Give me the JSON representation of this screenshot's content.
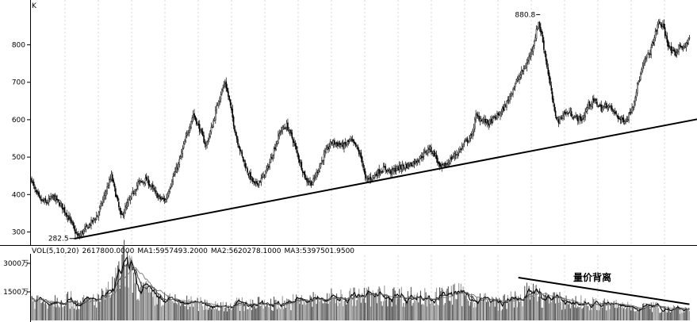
{
  "chart_data": {
    "type": "candlestick",
    "price_panel": {
      "corner_label": "K",
      "ylim": [
        265,
        905
      ],
      "yticks": [
        {
          "value": 300,
          "label": "300"
        },
        {
          "value": 400,
          "label": "400"
        },
        {
          "value": 500,
          "label": "500"
        },
        {
          "value": 600,
          "label": "600"
        },
        {
          "value": 700,
          "label": "700"
        },
        {
          "value": 800,
          "label": "800"
        }
      ],
      "grid": "vertical dashed",
      "low_label": "282.5",
      "high_label": "880.8",
      "low_value": 282.5,
      "high_value": 880.8,
      "close_path": [
        [
          0,
          440
        ],
        [
          3,
          410
        ],
        [
          8,
          385
        ],
        [
          14,
          378
        ],
        [
          20,
          395
        ],
        [
          28,
          370
        ],
        [
          36,
          333
        ],
        [
          40,
          305
        ],
        [
          44,
          286
        ],
        [
          48,
          300
        ],
        [
          54,
          318
        ],
        [
          62,
          345
        ],
        [
          70,
          410
        ],
        [
          75,
          450
        ],
        [
          80,
          390
        ],
        [
          84,
          340
        ],
        [
          92,
          385
        ],
        [
          100,
          430
        ],
        [
          108,
          440
        ],
        [
          115,
          410
        ],
        [
          120,
          390
        ],
        [
          126,
          385
        ],
        [
          132,
          440
        ],
        [
          138,
          480
        ],
        [
          146,
          560
        ],
        [
          152,
          615
        ],
        [
          158,
          575
        ],
        [
          164,
          530
        ],
        [
          170,
          585
        ],
        [
          176,
          655
        ],
        [
          182,
          700
        ],
        [
          186,
          650
        ],
        [
          192,
          560
        ],
        [
          198,
          500
        ],
        [
          204,
          455
        ],
        [
          210,
          425
        ],
        [
          216,
          440
        ],
        [
          222,
          470
        ],
        [
          228,
          520
        ],
        [
          234,
          570
        ],
        [
          240,
          585
        ],
        [
          246,
          545
        ],
        [
          252,
          490
        ],
        [
          258,
          440
        ],
        [
          264,
          430
        ],
        [
          270,
          470
        ],
        [
          276,
          510
        ],
        [
          282,
          540
        ],
        [
          288,
          535
        ],
        [
          294,
          530
        ],
        [
          300,
          545
        ],
        [
          306,
          525
        ],
        [
          311,
          490
        ],
        [
          314,
          440
        ],
        [
          320,
          445
        ],
        [
          326,
          460
        ],
        [
          332,
          470
        ],
        [
          338,
          460
        ],
        [
          344,
          470
        ],
        [
          350,
          475
        ],
        [
          356,
          480
        ],
        [
          362,
          490
        ],
        [
          368,
          505
        ],
        [
          374,
          525
        ],
        [
          380,
          505
        ],
        [
          384,
          470
        ],
        [
          390,
          480
        ],
        [
          396,
          500
        ],
        [
          402,
          515
        ],
        [
          408,
          540
        ],
        [
          414,
          555
        ],
        [
          418,
          610
        ],
        [
          424,
          600
        ],
        [
          430,
          590
        ],
        [
          436,
          605
        ],
        [
          442,
          620
        ],
        [
          448,
          650
        ],
        [
          454,
          690
        ],
        [
          460,
          720
        ],
        [
          466,
          750
        ],
        [
          472,
          800
        ],
        [
          477,
          860
        ],
        [
          480,
          825
        ],
        [
          484,
          760
        ],
        [
          488,
          690
        ],
        [
          492,
          620
        ],
        [
          496,
          595
        ],
        [
          500,
          615
        ],
        [
          506,
          620
        ],
        [
          512,
          605
        ],
        [
          518,
          600
        ],
        [
          524,
          640
        ],
        [
          530,
          650
        ],
        [
          536,
          630
        ],
        [
          542,
          640
        ],
        [
          548,
          620
        ],
        [
          554,
          600
        ],
        [
          560,
          600
        ],
        [
          566,
          640
        ],
        [
          570,
          690
        ],
        [
          574,
          730
        ],
        [
          578,
          765
        ],
        [
          582,
          780
        ],
        [
          586,
          820
        ],
        [
          590,
          860
        ],
        [
          594,
          850
        ],
        [
          598,
          810
        ],
        [
          602,
          780
        ],
        [
          606,
          775
        ],
        [
          610,
          800
        ],
        [
          614,
          790
        ],
        [
          619,
          820
        ]
      ],
      "trendline": [
        [
          40,
          282
        ],
        [
          633,
          605
        ]
      ]
    },
    "volume_panel": {
      "header": "VOL(5,10,20)",
      "series": [
        {
          "name": "VOL",
          "value": "2617800.0000"
        },
        {
          "name": "MA1",
          "value": "5957493.2000"
        },
        {
          "name": "MA2",
          "value": "5620278.1000"
        },
        {
          "name": "MA3",
          "value": "5397501.9500"
        }
      ],
      "ylim": [
        0,
        3500
      ],
      "yticks": [
        {
          "value": 1500,
          "label": "1500万"
        },
        {
          "value": 3000,
          "label": "3000万"
        }
      ],
      "volume_path": [
        [
          0,
          1100
        ],
        [
          15,
          1000
        ],
        [
          30,
          1200
        ],
        [
          45,
          900
        ],
        [
          70,
          1250
        ],
        [
          82,
          2300
        ],
        [
          88,
          3100
        ],
        [
          94,
          2400
        ],
        [
          100,
          1700
        ],
        [
          115,
          1250
        ],
        [
          130,
          1000
        ],
        [
          150,
          900
        ],
        [
          170,
          800
        ],
        [
          200,
          850
        ],
        [
          230,
          900
        ],
        [
          260,
          1050
        ],
        [
          300,
          1250
        ],
        [
          340,
          1300
        ],
        [
          380,
          1200
        ],
        [
          400,
          1400
        ],
        [
          420,
          1100
        ],
        [
          440,
          900
        ],
        [
          460,
          1200
        ],
        [
          470,
          1500
        ],
        [
          480,
          1200
        ],
        [
          500,
          1000
        ],
        [
          530,
          850
        ],
        [
          560,
          750
        ],
        [
          600,
          650
        ],
        [
          619,
          600
        ]
      ],
      "trendline": [
        [
          458,
          2250
        ],
        [
          619,
          850
        ]
      ],
      "annotation": "量价背离"
    }
  }
}
